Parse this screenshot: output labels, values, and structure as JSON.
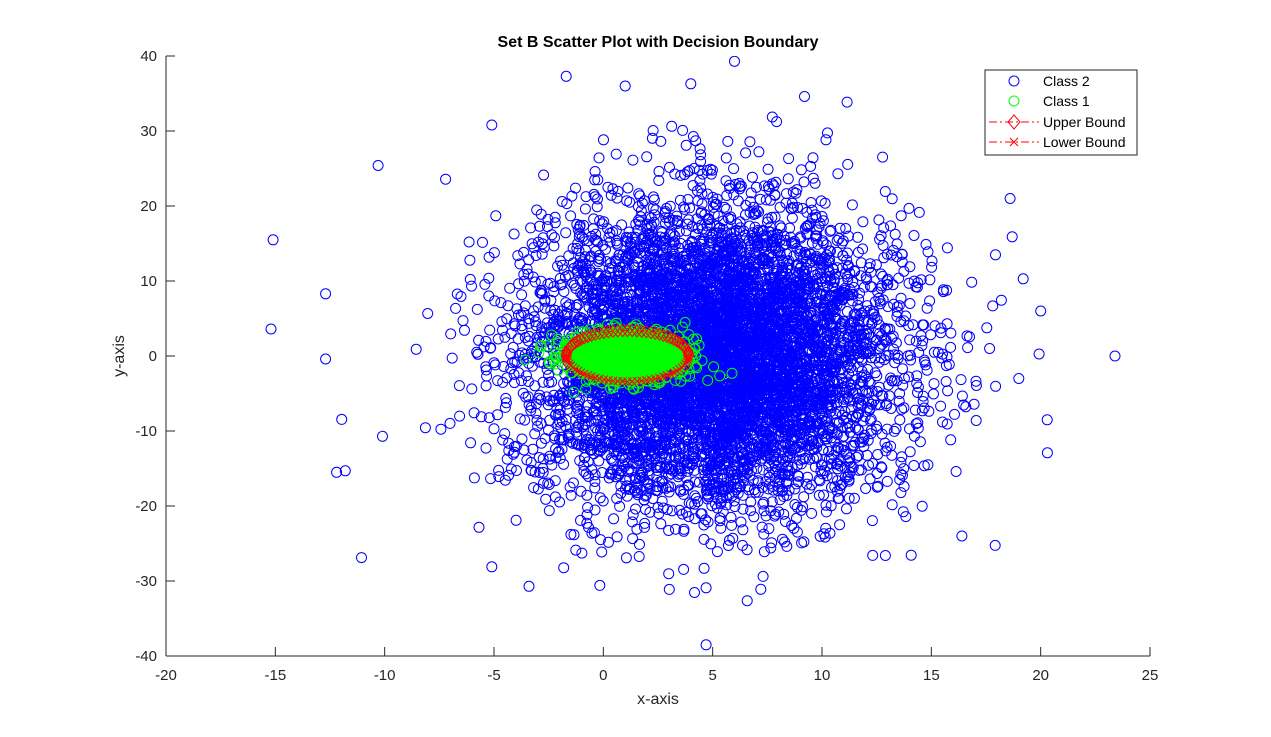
{
  "chart_data": {
    "type": "scatter",
    "title": "Set B Scatter Plot with Decision Boundary",
    "xlabel": "x-axis",
    "ylabel": "y-axis",
    "xlim": [
      -20,
      25
    ],
    "ylim": [
      -40,
      40
    ],
    "xticks": [
      -20,
      -15,
      -10,
      -5,
      0,
      5,
      10,
      15,
      20,
      25
    ],
    "yticks": [
      -40,
      -30,
      -20,
      -10,
      0,
      10,
      20,
      30,
      40
    ],
    "grid": false,
    "legend_position": "top-right",
    "series": [
      {
        "name": "Class 2",
        "color": "#0000ff",
        "marker": "circle",
        "distribution": {
          "mean": [
            5,
            0
          ],
          "std": [
            4.1,
            9.6
          ],
          "count": 7000
        },
        "outliers": [
          [
            -15.1,
            15.5
          ],
          [
            -15.2,
            3.6
          ],
          [
            -12.7,
            -0.4
          ],
          [
            -12.7,
            8.3
          ],
          [
            -12.2,
            -15.5
          ],
          [
            -11.8,
            -15.3
          ],
          [
            -10.3,
            25.4
          ],
          [
            -10.1,
            -10.7
          ],
          [
            4.7,
            -38.5
          ],
          [
            6.0,
            39.3
          ],
          [
            -1.7,
            37.3
          ],
          [
            4.7,
            -30.9
          ],
          [
            7.2,
            -31.1
          ],
          [
            -3.4,
            -30.7
          ],
          [
            23.4,
            0.0
          ],
          [
            20.3,
            -8.5
          ],
          [
            20.0,
            6.0
          ],
          [
            19.2,
            10.3
          ],
          [
            18.6,
            21.0
          ],
          [
            18.7,
            15.9
          ],
          [
            19.0,
            -3.0
          ],
          [
            -5.1,
            30.8
          ],
          [
            -5.1,
            -28.1
          ],
          [
            12.9,
            -26.6
          ],
          [
            16.4,
            -24.0
          ],
          [
            4.0,
            36.3
          ],
          [
            9.2,
            34.6
          ],
          [
            1.0,
            36.0
          ]
        ]
      },
      {
        "name": "Class 1",
        "color": "#00ff00",
        "marker": "circle",
        "distribution": {
          "mean": [
            1,
            0
          ],
          "std": [
            1.3,
            1.5
          ],
          "count": 1500
        }
      },
      {
        "name": "Upper Bound",
        "color": "#ff0000",
        "marker": "diamond",
        "line": "dash-dot",
        "ellipse": {
          "cx": 1.1,
          "cy": 0,
          "rx": 2.8,
          "ry": 3.4,
          "half": "upper"
        }
      },
      {
        "name": "Lower Bound",
        "color": "#ff0000",
        "marker": "x",
        "line": "dash-dot",
        "ellipse": {
          "cx": 1.1,
          "cy": 0,
          "rx": 2.8,
          "ry": 3.4,
          "half": "lower"
        }
      }
    ]
  }
}
